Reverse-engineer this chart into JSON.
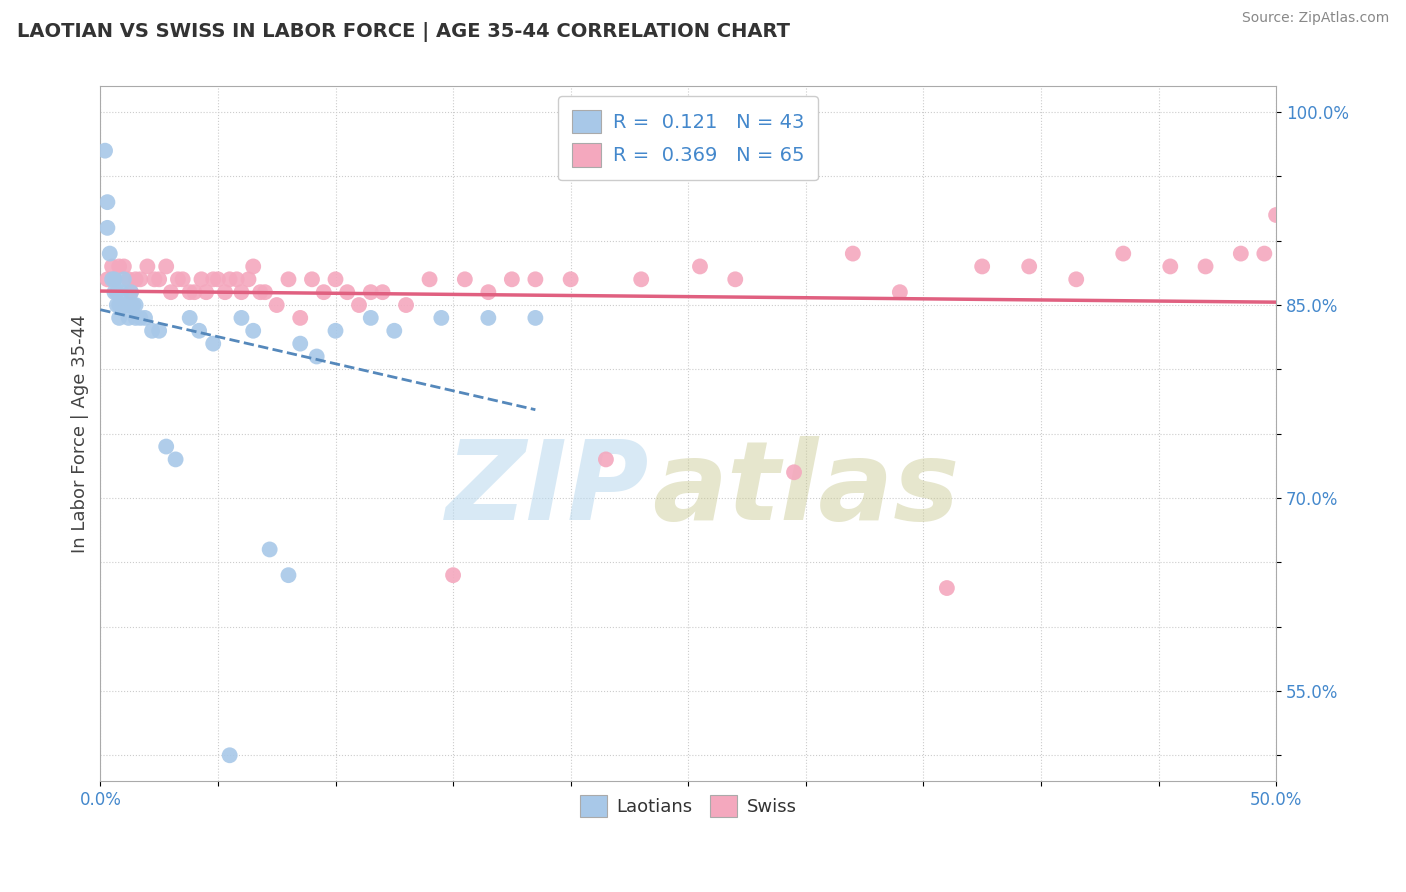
{
  "title": "LAOTIAN VS SWISS IN LABOR FORCE | AGE 35-44 CORRELATION CHART",
  "source": "Source: ZipAtlas.com",
  "ylabel": "In Labor Force | Age 35-44",
  "xlim": [
    0.0,
    0.5
  ],
  "ylim": [
    0.48,
    1.02
  ],
  "x_ticks": [
    0.0,
    0.05,
    0.1,
    0.15,
    0.2,
    0.25,
    0.3,
    0.35,
    0.4,
    0.45,
    0.5
  ],
  "x_ticklabels": [
    "0.0%",
    "",
    "",
    "",
    "",
    "",
    "",
    "",
    "",
    "",
    "50.0%"
  ],
  "y_ticks": [
    0.5,
    0.55,
    0.6,
    0.65,
    0.7,
    0.75,
    0.8,
    0.85,
    0.9,
    0.95,
    1.0
  ],
  "y_ticklabels": [
    "",
    "55.0%",
    "",
    "",
    "70.0%",
    "",
    "",
    "85.0%",
    "",
    "",
    "100.0%"
  ],
  "R_laotian": 0.121,
  "N_laotian": 43,
  "R_swiss": 0.369,
  "N_swiss": 65,
  "laotian_color": "#a8c8e8",
  "swiss_color": "#f4a8be",
  "laotian_line_color": "#5588bb",
  "swiss_line_color": "#e06080",
  "laotian_x": [
    0.002,
    0.003,
    0.003,
    0.004,
    0.005,
    0.006,
    0.006,
    0.007,
    0.007,
    0.008,
    0.008,
    0.009,
    0.01,
    0.01,
    0.011,
    0.012,
    0.012,
    0.013,
    0.014,
    0.015,
    0.015,
    0.017,
    0.019,
    0.022,
    0.025,
    0.028,
    0.032,
    0.038,
    0.042,
    0.048,
    0.055,
    0.06,
    0.065,
    0.072,
    0.08,
    0.085,
    0.092,
    0.1,
    0.115,
    0.125,
    0.145,
    0.165,
    0.185
  ],
  "laotian_y": [
    0.97,
    0.93,
    0.91,
    0.89,
    0.87,
    0.87,
    0.86,
    0.86,
    0.85,
    0.85,
    0.84,
    0.86,
    0.85,
    0.87,
    0.85,
    0.85,
    0.84,
    0.86,
    0.85,
    0.85,
    0.84,
    0.84,
    0.84,
    0.83,
    0.83,
    0.74,
    0.73,
    0.84,
    0.83,
    0.82,
    0.5,
    0.84,
    0.83,
    0.66,
    0.64,
    0.82,
    0.81,
    0.83,
    0.84,
    0.83,
    0.84,
    0.84,
    0.84
  ],
  "swiss_x": [
    0.003,
    0.005,
    0.006,
    0.008,
    0.01,
    0.012,
    0.013,
    0.015,
    0.017,
    0.02,
    0.023,
    0.025,
    0.028,
    0.03,
    0.033,
    0.035,
    0.038,
    0.04,
    0.043,
    0.045,
    0.048,
    0.05,
    0.053,
    0.055,
    0.058,
    0.06,
    0.063,
    0.065,
    0.068,
    0.07,
    0.075,
    0.08,
    0.085,
    0.09,
    0.095,
    0.1,
    0.105,
    0.11,
    0.115,
    0.12,
    0.13,
    0.14,
    0.15,
    0.155,
    0.165,
    0.175,
    0.185,
    0.2,
    0.215,
    0.23,
    0.255,
    0.27,
    0.295,
    0.32,
    0.34,
    0.36,
    0.375,
    0.395,
    0.415,
    0.435,
    0.455,
    0.47,
    0.485,
    0.495,
    0.5
  ],
  "swiss_y": [
    0.87,
    0.88,
    0.87,
    0.88,
    0.88,
    0.87,
    0.86,
    0.87,
    0.87,
    0.88,
    0.87,
    0.87,
    0.88,
    0.86,
    0.87,
    0.87,
    0.86,
    0.86,
    0.87,
    0.86,
    0.87,
    0.87,
    0.86,
    0.87,
    0.87,
    0.86,
    0.87,
    0.88,
    0.86,
    0.86,
    0.85,
    0.87,
    0.84,
    0.87,
    0.86,
    0.87,
    0.86,
    0.85,
    0.86,
    0.86,
    0.85,
    0.87,
    0.64,
    0.87,
    0.86,
    0.87,
    0.87,
    0.87,
    0.73,
    0.87,
    0.88,
    0.87,
    0.72,
    0.89,
    0.86,
    0.63,
    0.88,
    0.88,
    0.87,
    0.89,
    0.88,
    0.88,
    0.89,
    0.89,
    0.92
  ]
}
